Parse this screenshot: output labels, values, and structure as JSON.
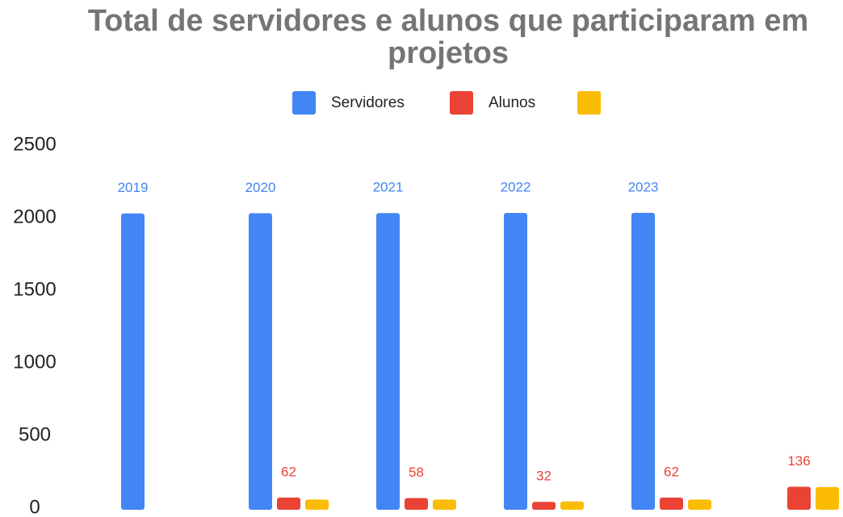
{
  "chart_data": {
    "type": "bar",
    "title": "Total de servidores e alunos que participaram em projetos",
    "categories": [
      null,
      null,
      null,
      null,
      null,
      null
    ],
    "series": [
      {
        "name": "Servidores",
        "color": "#4285f4",
        "values": [
          2019,
          2020,
          2021,
          2022,
          2023,
          null
        ]
      },
      {
        "name": "Alunos",
        "color": "#ea4335",
        "values": [
          null,
          62,
          58,
          32,
          62,
          136
        ]
      },
      {
        "color": "#fbbc04",
        "values": [
          null,
          48,
          48,
          35,
          48,
          134
        ]
      }
    ],
    "ylim": [
      0,
      2500
    ],
    "yticks": [
      0,
      500,
      1000,
      1500,
      2000,
      2500
    ],
    "grid": false,
    "legend": "top",
    "data_labels": [
      true,
      true,
      false
    ]
  }
}
